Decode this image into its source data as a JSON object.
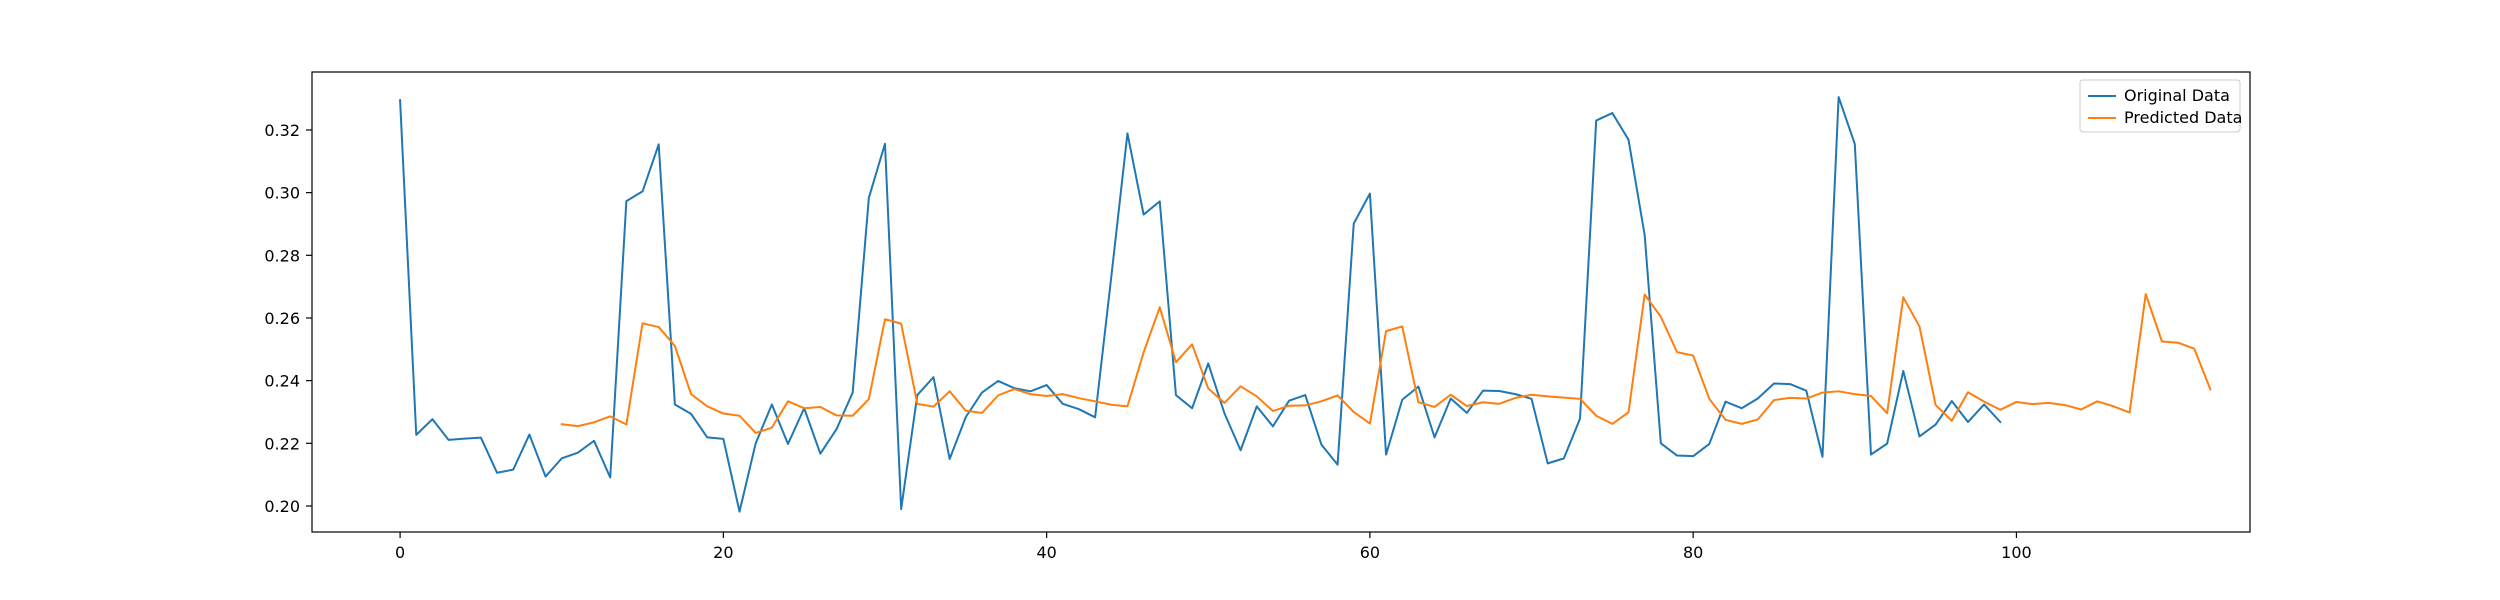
{
  "chart_data": {
    "type": "line",
    "title": "",
    "xlabel": "",
    "ylabel": "",
    "xlim": [
      -5.45,
      114.45
    ],
    "ylim": [
      0.1917,
      0.3385
    ],
    "xticks": [
      0,
      20,
      40,
      60,
      80,
      100
    ],
    "yticks": [
      0.2,
      0.22,
      0.24,
      0.26,
      0.28,
      0.3,
      0.32
    ],
    "grid": false,
    "legend_position": "top-right",
    "series": [
      {
        "name": "Original Data",
        "color": "#1f77b4",
        "x_start": 0,
        "values": [
          0.3295,
          0.2227,
          0.2277,
          0.2211,
          0.2215,
          0.2218,
          0.2106,
          0.2116,
          0.2228,
          0.2094,
          0.2152,
          0.217,
          0.2208,
          0.2091,
          0.2973,
          0.3004,
          0.3154,
          0.2324,
          0.2294,
          0.2219,
          0.2214,
          0.1982,
          0.22,
          0.2324,
          0.2198,
          0.2312,
          0.2167,
          0.2245,
          0.2362,
          0.2983,
          0.3156,
          0.199,
          0.2354,
          0.2411,
          0.215,
          0.2284,
          0.2362,
          0.2399,
          0.2376,
          0.2366,
          0.2386,
          0.2326,
          0.2309,
          0.2283,
          0.2731,
          0.3189,
          0.293,
          0.2972,
          0.2354,
          0.2312,
          0.2455,
          0.2296,
          0.2178,
          0.2318,
          0.2254,
          0.2336,
          0.2354,
          0.2196,
          0.2132,
          0.2901,
          0.2997,
          0.2164,
          0.2339,
          0.2381,
          0.2219,
          0.2343,
          0.2297,
          0.2368,
          0.2367,
          0.2357,
          0.2342,
          0.2136,
          0.2152,
          0.2279,
          0.323,
          0.3254,
          0.3169,
          0.2864,
          0.22,
          0.2161,
          0.2159,
          0.2198,
          0.2333,
          0.2312,
          0.2343,
          0.2391,
          0.2389,
          0.2368,
          0.2157,
          0.3305,
          0.3155,
          0.2164,
          0.2199,
          0.2431,
          0.2222,
          0.226,
          0.2335,
          0.2268,
          0.2324,
          0.2268
        ]
      },
      {
        "name": "Predicted Data",
        "color": "#ff7f0e",
        "x_start": 10,
        "values": [
          0.2261,
          0.2255,
          0.2267,
          0.2286,
          0.226,
          0.2583,
          0.2571,
          0.2511,
          0.2357,
          0.2318,
          0.2295,
          0.2288,
          0.2233,
          0.225,
          0.2334,
          0.2312,
          0.2316,
          0.2289,
          0.2288,
          0.2341,
          0.2596,
          0.2582,
          0.2326,
          0.2317,
          0.2366,
          0.2304,
          0.2297,
          0.2353,
          0.2373,
          0.2357,
          0.2351,
          0.2357,
          0.2344,
          0.2334,
          0.2323,
          0.2318,
          0.249,
          0.2634,
          0.2459,
          0.2516,
          0.2375,
          0.2329,
          0.2382,
          0.235,
          0.2303,
          0.232,
          0.2321,
          0.2334,
          0.2353,
          0.23,
          0.2263,
          0.2558,
          0.2573,
          0.2331,
          0.2316,
          0.2355,
          0.2319,
          0.2331,
          0.2326,
          0.2345,
          0.2355,
          0.235,
          0.2346,
          0.2342,
          0.2288,
          0.2262,
          0.2299,
          0.2675,
          0.2604,
          0.2491,
          0.248,
          0.2342,
          0.2275,
          0.2262,
          0.2276,
          0.2338,
          0.2345,
          0.2343,
          0.2362,
          0.2366,
          0.2357,
          0.2351,
          0.2296,
          0.2666,
          0.2573,
          0.2322,
          0.2272,
          0.2363,
          0.2333,
          0.2307,
          0.2332,
          0.2325,
          0.2329,
          0.2322,
          0.2308,
          0.2334,
          0.2318,
          0.2298,
          0.2676,
          0.2525,
          0.2521,
          0.2502,
          0.2372
        ]
      }
    ]
  }
}
